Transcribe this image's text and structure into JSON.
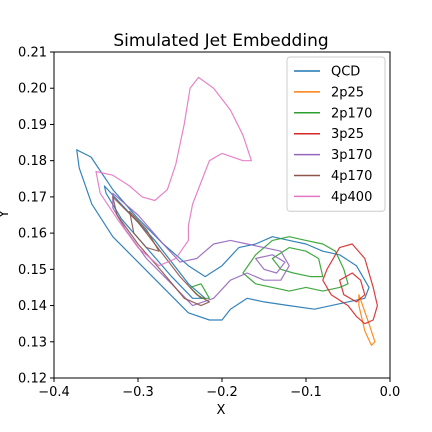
{
  "chart_data": {
    "type": "line",
    "title": "Simulated Jet Embedding",
    "xlabel": "X",
    "ylabel": "Y",
    "xlim": [
      -0.4,
      0.0
    ],
    "ylim": [
      0.12,
      0.21
    ],
    "xticks": [
      "−0.4",
      "−0.3",
      "−0.2",
      "−0.1",
      "0.0"
    ],
    "yticks": [
      "0.12",
      "0.13",
      "0.14",
      "0.15",
      "0.16",
      "0.17",
      "0.18",
      "0.19",
      "0.20",
      "0.21"
    ],
    "grid": false,
    "legend_position": "top-right",
    "series": [
      {
        "name": "QCD",
        "color": "#1f77b4",
        "contours": [
          [
            [
              -0.373,
              0.183
            ],
            [
              -0.356,
              0.181
            ],
            [
              -0.33,
              0.172
            ],
            [
              -0.3,
              0.164
            ],
            [
              -0.27,
              0.157
            ],
            [
              -0.24,
              0.151
            ],
            [
              -0.22,
              0.148
            ],
            [
              -0.2,
              0.151
            ],
            [
              -0.18,
              0.156
            ],
            [
              -0.16,
              0.157
            ],
            [
              -0.14,
              0.159
            ],
            [
              -0.12,
              0.158
            ],
            [
              -0.1,
              0.157
            ],
            [
              -0.08,
              0.155
            ],
            [
              -0.06,
              0.154
            ],
            [
              -0.04,
              0.151
            ],
            [
              -0.025,
              0.145
            ],
            [
              -0.03,
              0.142
            ],
            [
              -0.05,
              0.141
            ],
            [
              -0.07,
              0.14
            ],
            [
              -0.09,
              0.139
            ],
            [
              -0.12,
              0.14
            ],
            [
              -0.15,
              0.141
            ],
            [
              -0.17,
              0.142
            ],
            [
              -0.19,
              0.139
            ],
            [
              -0.2,
              0.136
            ],
            [
              -0.215,
              0.136
            ],
            [
              -0.24,
              0.138
            ],
            [
              -0.27,
              0.145
            ],
            [
              -0.3,
              0.152
            ],
            [
              -0.33,
              0.159
            ],
            [
              -0.355,
              0.168
            ],
            [
              -0.37,
              0.178
            ],
            [
              -0.373,
              0.183
            ]
          ],
          [
            [
              -0.34,
              0.173
            ],
            [
              -0.32,
              0.168
            ],
            [
              -0.3,
              0.163
            ],
            [
              -0.28,
              0.158
            ],
            [
              -0.26,
              0.152
            ],
            [
              -0.24,
              0.146
            ],
            [
              -0.22,
              0.142
            ],
            [
              -0.235,
              0.142
            ],
            [
              -0.26,
              0.148
            ],
            [
              -0.29,
              0.156
            ],
            [
              -0.32,
              0.164
            ],
            [
              -0.338,
              0.171
            ],
            [
              -0.34,
              0.173
            ]
          ]
        ]
      },
      {
        "name": "2p25",
        "color": "#ff7f0e",
        "contours": [
          [
            [
              -0.037,
              0.143
            ],
            [
              -0.025,
              0.135
            ],
            [
              -0.018,
              0.13
            ],
            [
              -0.022,
              0.129
            ],
            [
              -0.03,
              0.133
            ],
            [
              -0.037,
              0.14
            ],
            [
              -0.037,
              0.143
            ]
          ]
        ]
      },
      {
        "name": "2p170",
        "color": "#2ca02c",
        "contours": [
          [
            [
              -0.175,
              0.149
            ],
            [
              -0.16,
              0.154
            ],
            [
              -0.14,
              0.158
            ],
            [
              -0.12,
              0.159
            ],
            [
              -0.1,
              0.158
            ],
            [
              -0.08,
              0.157
            ],
            [
              -0.065,
              0.155
            ],
            [
              -0.055,
              0.15
            ],
            [
              -0.05,
              0.146
            ],
            [
              -0.06,
              0.145
            ],
            [
              -0.08,
              0.144
            ],
            [
              -0.1,
              0.145
            ],
            [
              -0.12,
              0.144
            ],
            [
              -0.14,
              0.145
            ],
            [
              -0.16,
              0.146
            ],
            [
              -0.175,
              0.149
            ]
          ],
          [
            [
              -0.14,
              0.153
            ],
            [
              -0.12,
              0.156
            ],
            [
              -0.1,
              0.155
            ],
            [
              -0.085,
              0.153
            ],
            [
              -0.08,
              0.148
            ],
            [
              -0.095,
              0.148
            ],
            [
              -0.115,
              0.149
            ],
            [
              -0.13,
              0.15
            ],
            [
              -0.14,
              0.153
            ]
          ],
          [
            [
              -0.238,
              0.145
            ],
            [
              -0.225,
              0.142
            ],
            [
              -0.215,
              0.142
            ],
            [
              -0.225,
              0.146
            ],
            [
              -0.238,
              0.145
            ]
          ]
        ]
      },
      {
        "name": "3p25",
        "color": "#d62728",
        "contours": [
          [
            [
              -0.075,
              0.15
            ],
            [
              -0.06,
              0.156
            ],
            [
              -0.045,
              0.157
            ],
            [
              -0.03,
              0.153
            ],
            [
              -0.02,
              0.145
            ],
            [
              -0.015,
              0.14
            ],
            [
              -0.02,
              0.136
            ],
            [
              -0.03,
              0.135
            ],
            [
              -0.04,
              0.137
            ],
            [
              -0.05,
              0.14
            ],
            [
              -0.07,
              0.143
            ],
            [
              -0.08,
              0.147
            ],
            [
              -0.075,
              0.15
            ]
          ],
          [
            [
              -0.06,
              0.147
            ],
            [
              -0.045,
              0.149
            ],
            [
              -0.035,
              0.147
            ],
            [
              -0.03,
              0.143
            ],
            [
              -0.04,
              0.141
            ],
            [
              -0.055,
              0.143
            ],
            [
              -0.06,
              0.147
            ]
          ]
        ]
      },
      {
        "name": "3p170",
        "color": "#9467bd",
        "contours": [
          [
            [
              -0.33,
              0.171
            ],
            [
              -0.3,
              0.165
            ],
            [
              -0.27,
              0.157
            ],
            [
              -0.25,
              0.152
            ],
            [
              -0.23,
              0.153
            ],
            [
              -0.21,
              0.157
            ],
            [
              -0.19,
              0.158
            ],
            [
              -0.17,
              0.157
            ],
            [
              -0.15,
              0.156
            ],
            [
              -0.13,
              0.155
            ],
            [
              -0.12,
              0.151
            ],
            [
              -0.13,
              0.147
            ],
            [
              -0.15,
              0.147
            ],
            [
              -0.17,
              0.149
            ],
            [
              -0.19,
              0.147
            ],
            [
              -0.21,
              0.142
            ],
            [
              -0.235,
              0.14
            ],
            [
              -0.26,
              0.146
            ],
            [
              -0.29,
              0.153
            ],
            [
              -0.315,
              0.161
            ],
            [
              -0.33,
              0.167
            ],
            [
              -0.33,
              0.171
            ]
          ],
          [
            [
              -0.16,
              0.153
            ],
            [
              -0.14,
              0.154
            ],
            [
              -0.125,
              0.152
            ],
            [
              -0.135,
              0.149
            ],
            [
              -0.15,
              0.15
            ],
            [
              -0.16,
              0.153
            ]
          ]
        ]
      },
      {
        "name": "4p170",
        "color": "#8c564b",
        "contours": [
          [
            [
              -0.33,
              0.17
            ],
            [
              -0.3,
              0.163
            ],
            [
              -0.27,
              0.154
            ],
            [
              -0.25,
              0.148
            ],
            [
              -0.23,
              0.143
            ],
            [
              -0.215,
              0.141
            ],
            [
              -0.225,
              0.14
            ],
            [
              -0.245,
              0.142
            ],
            [
              -0.27,
              0.149
            ],
            [
              -0.3,
              0.157
            ],
            [
              -0.325,
              0.165
            ],
            [
              -0.33,
              0.17
            ]
          ],
          [
            [
              -0.31,
              0.166
            ],
            [
              -0.29,
              0.161
            ],
            [
              -0.275,
              0.155
            ],
            [
              -0.29,
              0.156
            ],
            [
              -0.305,
              0.16
            ],
            [
              -0.31,
              0.166
            ]
          ]
        ]
      },
      {
        "name": "4p400",
        "color": "#e377c2",
        "contours": [
          [
            [
              -0.35,
              0.177
            ],
            [
              -0.33,
              0.176
            ],
            [
              -0.31,
              0.173
            ],
            [
              -0.295,
              0.17
            ],
            [
              -0.28,
              0.169
            ],
            [
              -0.265,
              0.172
            ],
            [
              -0.255,
              0.179
            ],
            [
              -0.245,
              0.19
            ],
            [
              -0.238,
              0.2
            ],
            [
              -0.228,
              0.203
            ],
            [
              -0.21,
              0.2
            ],
            [
              -0.19,
              0.194
            ],
            [
              -0.175,
              0.187
            ],
            [
              -0.165,
              0.18
            ],
            [
              -0.175,
              0.18
            ],
            [
              -0.2,
              0.182
            ],
            [
              -0.215,
              0.18
            ],
            [
              -0.225,
              0.174
            ],
            [
              -0.235,
              0.168
            ],
            [
              -0.24,
              0.162
            ],
            [
              -0.24,
              0.158
            ],
            [
              -0.255,
              0.153
            ],
            [
              -0.275,
              0.151
            ],
            [
              -0.3,
              0.156
            ],
            [
              -0.325,
              0.164
            ],
            [
              -0.345,
              0.171
            ],
            [
              -0.35,
              0.177
            ]
          ]
        ]
      }
    ]
  }
}
